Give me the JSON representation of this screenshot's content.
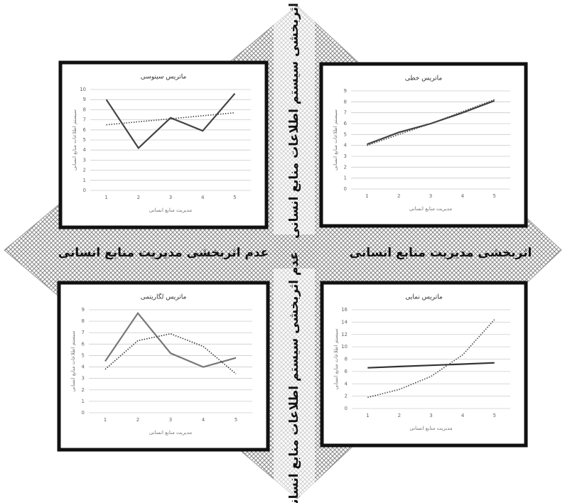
{
  "labels": {
    "top": "اثربخشی سیستم اطلاعات منابع انسانی",
    "bottom": "عدم اثربخشی سیستم اطلاعات منابع انسانی",
    "left": "عدم اثربخشی مدیریت منابع انسانی",
    "right": "اثربخشی مدیریت منابع انسانی"
  },
  "chart_data": [
    {
      "type": "line",
      "title": "ماتریس سینوسی",
      "x_label": "مدیریت منابع انسانی",
      "y_label": "سیستم اطلاعات منابع انسانی",
      "categories": [
        "1",
        "2",
        "3",
        "4",
        "5"
      ],
      "ylim": [
        0,
        10
      ],
      "yticks": [
        0,
        1,
        2,
        3,
        4,
        5,
        6,
        7,
        8,
        9,
        10
      ],
      "grid": true,
      "series": [
        {
          "color": "#444444",
          "style": "solid",
          "values": [
            9,
            4.2,
            7.2,
            5.9,
            9.6
          ]
        },
        {
          "color": "#444444",
          "style": "dotted",
          "values": [
            6.5,
            6.8,
            7.1,
            7.4,
            7.7
          ]
        }
      ]
    },
    {
      "type": "line",
      "title": "ماتریس خطی",
      "x_label": "مدیریت منابع انسانی",
      "y_label": "سیستم اطلاعات منابع انسانی",
      "categories": [
        "1",
        "2",
        "3",
        "4",
        "5"
      ],
      "ylim": [
        0,
        9
      ],
      "yticks": [
        0,
        1,
        2,
        3,
        4,
        5,
        6,
        7,
        8,
        9
      ],
      "grid": true,
      "series": [
        {
          "color": "#444444",
          "style": "solid",
          "values": [
            4.1,
            5.2,
            6,
            7,
            8.1
          ]
        },
        {
          "color": "#444444",
          "style": "dotted",
          "values": [
            4,
            5,
            6,
            7.1,
            8.2
          ]
        }
      ]
    },
    {
      "type": "line",
      "title": "ماتریس لگاریتمی",
      "x_label": "مدیریت منابع انسانی",
      "y_label": "سیستم اطلاعات منابع انسانی",
      "categories": [
        "1",
        "2",
        "3",
        "4",
        "5"
      ],
      "ylim": [
        0,
        9
      ],
      "yticks": [
        0,
        1,
        2,
        3,
        4,
        5,
        6,
        7,
        8,
        9
      ],
      "grid": true,
      "series": [
        {
          "color": "#777777",
          "style": "solid",
          "values": [
            4.5,
            8.7,
            5.2,
            4,
            4.8
          ]
        },
        {
          "color": "#333333",
          "style": "dotted",
          "values": [
            3.8,
            6.3,
            6.9,
            5.8,
            3.4
          ]
        }
      ]
    },
    {
      "type": "line",
      "title": "ماتریس نمایی",
      "x_label": "مدیریت منابع انسانی",
      "y_label": "سیستم اطلاعات منابع انسانی",
      "categories": [
        "1",
        "2",
        "3",
        "4",
        "5"
      ],
      "ylim": [
        0,
        16
      ],
      "yticks": [
        0,
        2,
        4,
        6,
        8,
        10,
        12,
        14,
        16
      ],
      "grid": true,
      "series": [
        {
          "color": "#333333",
          "style": "solid",
          "values": [
            6.6,
            6.8,
            7,
            7.2,
            7.4
          ]
        },
        {
          "color": "#444444",
          "style": "dotted",
          "values": [
            1.8,
            3.1,
            5.2,
            8.7,
            14.4
          ]
        }
      ]
    }
  ]
}
